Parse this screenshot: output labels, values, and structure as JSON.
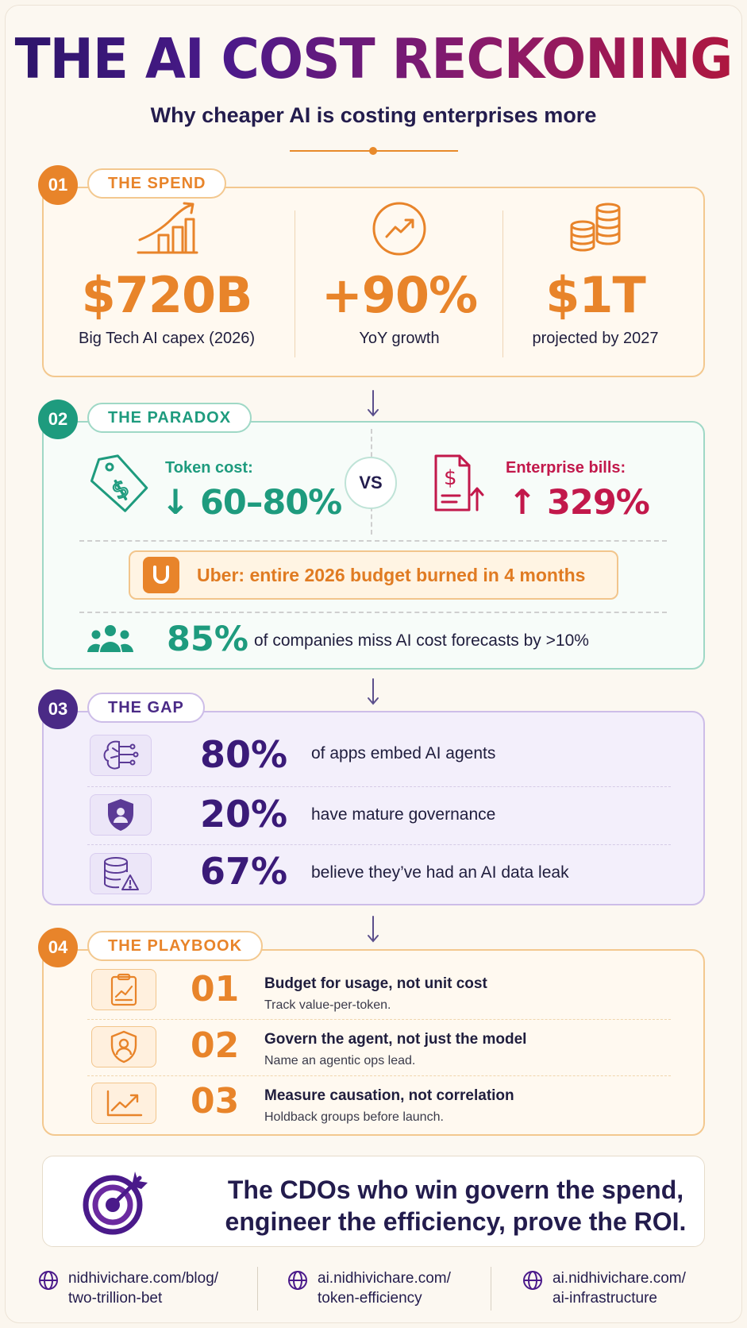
{
  "header": {
    "title": "THE AI COST RECKONING",
    "subtitle": "Why cheaper AI is costing enterprises more"
  },
  "sections": {
    "spend": {
      "num": "01",
      "title": "THE SPEND",
      "stats": [
        {
          "value": "$720B",
          "label": "Big Tech AI capex (2026)",
          "icon": "bar-chart-trend-icon"
        },
        {
          "value": "+90%",
          "label": "YoY growth",
          "icon": "trend-up-circle-icon"
        },
        {
          "value": "$1T",
          "label": "projected by 2027",
          "icon": "coin-stacks-icon"
        }
      ]
    },
    "paradox": {
      "num": "02",
      "title": "THE PARADOX",
      "left_label": "Token cost:",
      "left_value": "↓ 60–80%",
      "vs": "VS",
      "right_label": "Enterprise bills:",
      "right_value": "↑ 329%",
      "uber_text": "Uber: entire 2026 budget burned in 4 months",
      "stat_pct": "85%",
      "stat_text": "of companies miss AI cost forecasts by >10%"
    },
    "gap": {
      "num": "03",
      "title": "THE GAP",
      "rows": [
        {
          "pct": "80%",
          "text": "of apps embed AI agents",
          "icon": "brain-circuit-icon"
        },
        {
          "pct": "20%",
          "text": "have mature governance",
          "icon": "shield-user-icon"
        },
        {
          "pct": "67%",
          "text": "believe they’ve had an AI data leak",
          "icon": "database-warning-icon"
        }
      ]
    },
    "playbook": {
      "num": "04",
      "title": "THE PLAYBOOK",
      "rows": [
        {
          "num": "01",
          "head": "Budget for usage, not unit cost",
          "sub": "Track value-per-token.",
          "icon": "clipboard-chart-icon"
        },
        {
          "num": "02",
          "head": "Govern the agent, not just the model",
          "sub": "Name an agentic ops lead.",
          "icon": "shield-user-icon"
        },
        {
          "num": "03",
          "head": "Measure causation, not correlation",
          "sub": "Holdback groups before launch.",
          "icon": "line-chart-up-icon"
        }
      ]
    }
  },
  "conclusion": {
    "line1": "The CDOs who win govern the spend,",
    "line2": "engineer the efficiency, prove the ROI."
  },
  "footer": {
    "links": [
      {
        "line1": "nidhivichare.com/blog/",
        "line2": "two-trillion-bet"
      },
      {
        "line1": "ai.nidhivichare.com/",
        "line2": "token-efficiency"
      },
      {
        "line1": "ai.nidhivichare.com/",
        "line2": "ai-infrastructure"
      }
    ]
  },
  "colors": {
    "orange": "#e8842a",
    "teal": "#1e9b7e",
    "purple": "#4a2a86",
    "red": "#c2184b",
    "navy": "#231c4d"
  }
}
